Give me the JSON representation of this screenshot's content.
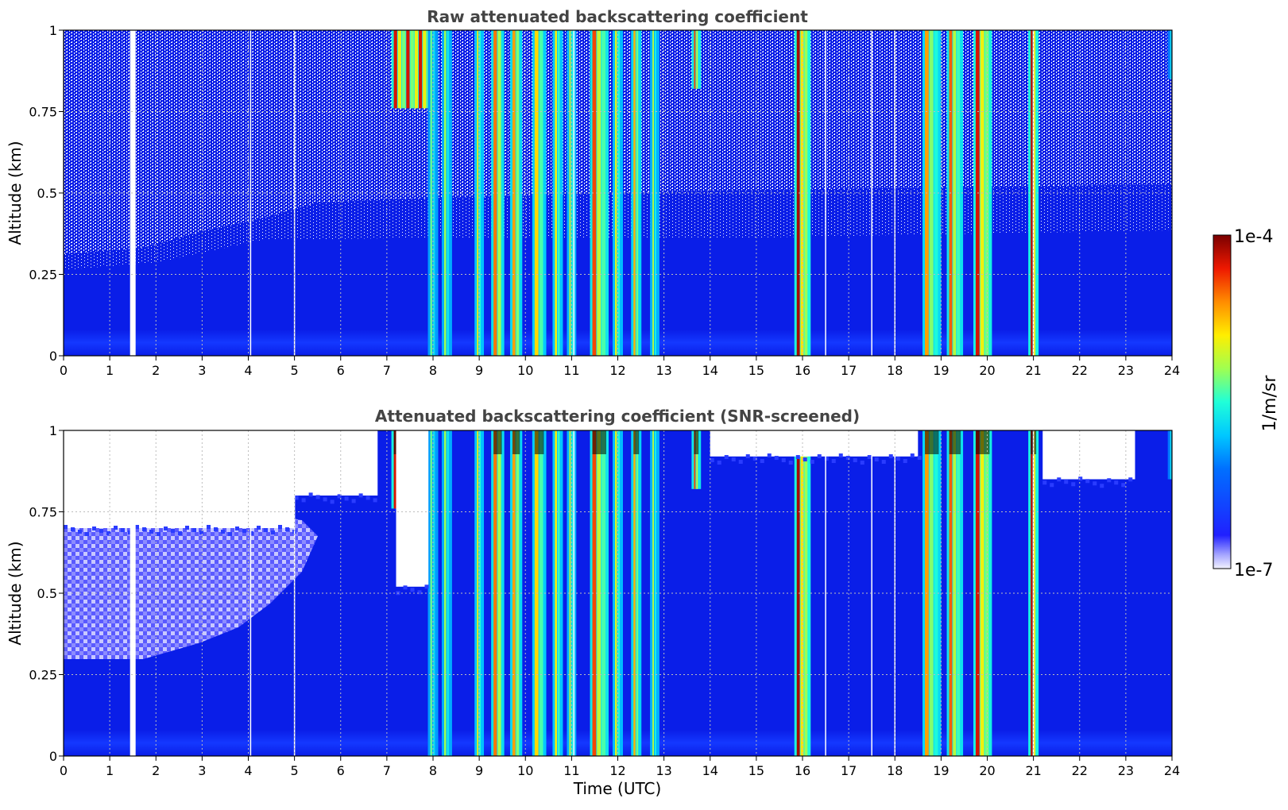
{
  "chart_data": [
    {
      "type": "heatmap",
      "title": "Raw attenuated backscattering coefficient",
      "xlabel": "",
      "ylabel": "Altitude (km)",
      "xlim": [
        0,
        24
      ],
      "ylim": [
        0,
        1
      ],
      "xticks": [
        "0",
        "1",
        "2",
        "3",
        "4",
        "5",
        "6",
        "7",
        "8",
        "9",
        "10",
        "11",
        "12",
        "13",
        "14",
        "15",
        "16",
        "17",
        "18",
        "19",
        "20",
        "21",
        "22",
        "23",
        "24"
      ],
      "yticks": [
        "0",
        "0.25",
        "0.5",
        "0.75",
        "1"
      ],
      "grid": true,
      "cloud_events": [
        {
          "time": 7.6,
          "width": 0.9,
          "top": 1.0,
          "base": 0.76,
          "intensity": 0.92
        },
        {
          "time": 8.0,
          "width": 0.12,
          "top": 1.0,
          "base": 0.0,
          "intensity": 0.55
        },
        {
          "time": 8.3,
          "width": 0.12,
          "top": 1.0,
          "base": 0.0,
          "intensity": 0.6
        },
        {
          "time": 9.0,
          "width": 0.1,
          "top": 1.0,
          "base": 0.0,
          "intensity": 0.68
        },
        {
          "time": 9.4,
          "width": 0.18,
          "top": 1.0,
          "base": 0.0,
          "intensity": 0.82
        },
        {
          "time": 9.8,
          "width": 0.16,
          "top": 1.0,
          "base": 0.0,
          "intensity": 0.78
        },
        {
          "time": 10.3,
          "width": 0.2,
          "top": 1.0,
          "base": 0.0,
          "intensity": 0.72
        },
        {
          "time": 10.7,
          "width": 0.12,
          "top": 1.0,
          "base": 0.0,
          "intensity": 0.7
        },
        {
          "time": 11.0,
          "width": 0.1,
          "top": 1.0,
          "base": 0.0,
          "intensity": 0.64
        },
        {
          "time": 11.6,
          "width": 0.3,
          "top": 1.0,
          "base": 0.0,
          "intensity": 0.86
        },
        {
          "time": 12.0,
          "width": 0.12,
          "top": 1.0,
          "base": 0.0,
          "intensity": 0.66
        },
        {
          "time": 12.4,
          "width": 0.12,
          "top": 1.0,
          "base": 0.0,
          "intensity": 0.76
        },
        {
          "time": 12.8,
          "width": 0.1,
          "top": 1.0,
          "base": 0.0,
          "intensity": 0.62
        },
        {
          "time": 13.7,
          "width": 0.1,
          "top": 1.0,
          "base": 0.82,
          "intensity": 0.86
        },
        {
          "time": 16.0,
          "width": 0.25,
          "top": 1.0,
          "base": 0.0,
          "intensity": 0.96
        },
        {
          "time": 18.8,
          "width": 0.3,
          "top": 1.0,
          "base": 0.0,
          "intensity": 0.78
        },
        {
          "time": 19.3,
          "width": 0.25,
          "top": 1.0,
          "base": 0.0,
          "intensity": 0.84
        },
        {
          "time": 19.9,
          "width": 0.3,
          "top": 1.0,
          "base": 0.0,
          "intensity": 0.92
        },
        {
          "time": 21.0,
          "width": 0.12,
          "top": 1.0,
          "base": 0.0,
          "intensity": 0.94
        },
        {
          "time": 24.0,
          "width": 0.08,
          "top": 1.0,
          "base": 0.85,
          "intensity": 0.42
        }
      ],
      "missing_data_times": [
        1.5,
        4.05,
        5.0,
        11.05,
        16.5,
        17.5,
        18.0,
        21.0
      ]
    },
    {
      "type": "heatmap",
      "title": "Attenuated backscattering coefficient (SNR-screened)",
      "xlabel": "Time (UTC)",
      "ylabel": "Altitude (km)",
      "xlim": [
        0,
        24
      ],
      "ylim": [
        0,
        1
      ],
      "xticks": [
        "0",
        "1",
        "2",
        "3",
        "4",
        "5",
        "6",
        "7",
        "8",
        "9",
        "10",
        "11",
        "12",
        "13",
        "14",
        "15",
        "16",
        "17",
        "18",
        "19",
        "20",
        "21",
        "22",
        "23",
        "24"
      ],
      "yticks": [
        "0",
        "0.25",
        "0.5",
        "0.75",
        "1"
      ],
      "grid": true,
      "screened_out_regions": [
        {
          "time_start": 0.0,
          "time_end": 5.0,
          "above_altitude": 0.7
        },
        {
          "time_start": 5.0,
          "time_end": 6.8,
          "above_altitude": 0.8
        },
        {
          "time_start": 7.2,
          "time_end": 7.9,
          "above_altitude": 0.52
        },
        {
          "time_start": 14.0,
          "time_end": 18.5,
          "above_altitude": 0.92
        },
        {
          "time_start": 21.2,
          "time_end": 23.2,
          "above_altitude": 0.85
        }
      ]
    }
  ],
  "colorbar": {
    "label": "1/m/sr",
    "max_label": "1e-4",
    "min_label": "1e-7",
    "scale": "log",
    "range": [
      1e-07,
      0.0001
    ],
    "colormap": "jet"
  }
}
